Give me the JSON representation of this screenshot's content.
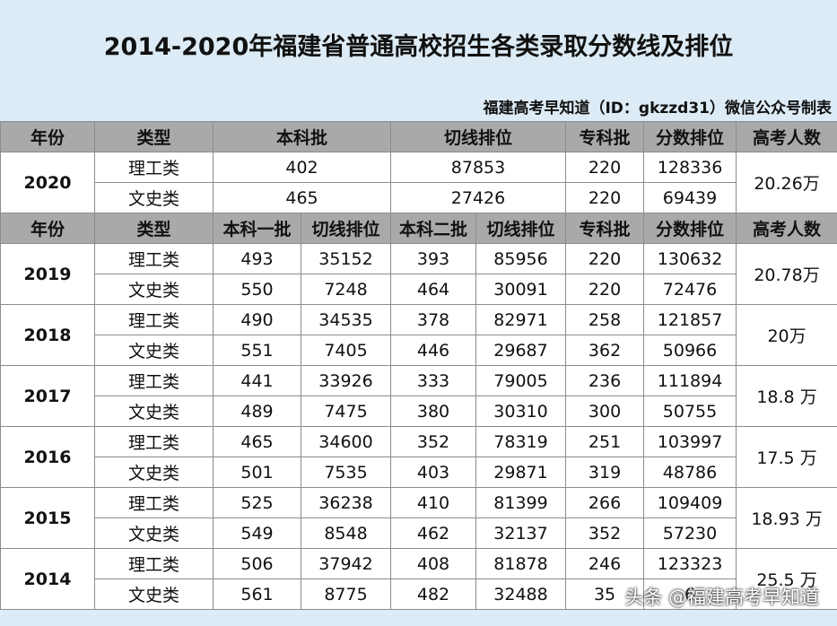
{
  "header": {
    "title": "2014-2020年福建省普通高校招生各类录取分数线及排位",
    "source": "福建高考早知道（ID：gkzzd31）微信公众号制表"
  },
  "table": {
    "header1": [
      "年份",
      "类型",
      "本科批",
      "切线排位",
      "专科批",
      "分数排位",
      "高考人数"
    ],
    "group2020": {
      "year": "2020",
      "total": "20.26万",
      "rows": [
        [
          "理工类",
          "402",
          "87853",
          "220",
          "128336"
        ],
        [
          "文史类",
          "465",
          "27426",
          "220",
          "69439"
        ]
      ]
    },
    "header2": [
      "年份",
      "类型",
      "本科一批",
      "切线排位",
      "本科二批",
      "切线排位",
      "专科批",
      "分数排位",
      "高考人数"
    ],
    "groups": [
      {
        "year": "2019",
        "total": "20.78万",
        "rows": [
          [
            "理工类",
            "493",
            "35152",
            "393",
            "85956",
            "220",
            "130632"
          ],
          [
            "文史类",
            "550",
            "7248",
            "464",
            "30091",
            "220",
            "72476"
          ]
        ]
      },
      {
        "year": "2018",
        "total": "20万",
        "rows": [
          [
            "理工类",
            "490",
            "34535",
            "378",
            "82971",
            "258",
            "121857"
          ],
          [
            "文史类",
            "551",
            "7405",
            "446",
            "29687",
            "362",
            "50966"
          ]
        ]
      },
      {
        "year": "2017",
        "total": "18.8 万",
        "rows": [
          [
            "理工类",
            "441",
            "33926",
            "333",
            "79005",
            "236",
            "111894"
          ],
          [
            "文史类",
            "489",
            "7475",
            "380",
            "30310",
            "300",
            "50755"
          ]
        ]
      },
      {
        "year": "2016",
        "total": "17.5 万",
        "rows": [
          [
            "理工类",
            "465",
            "34600",
            "352",
            "78319",
            "251",
            "103997"
          ],
          [
            "文史类",
            "501",
            "7535",
            "403",
            "29871",
            "319",
            "48786"
          ]
        ]
      },
      {
        "year": "2015",
        "total": "18.93 万",
        "rows": [
          [
            "理工类",
            "525",
            "36238",
            "410",
            "81399",
            "266",
            "109409"
          ],
          [
            "文史类",
            "549",
            "8548",
            "462",
            "32137",
            "352",
            "57230"
          ]
        ]
      },
      {
        "year": "2014",
        "total": "25.5 万",
        "rows": [
          [
            "理工类",
            "506",
            "37942",
            "408",
            "81878",
            "246",
            "123323"
          ],
          [
            "文史类",
            "561",
            "8775",
            "482",
            "32488",
            "35",
            "6"
          ]
        ]
      }
    ]
  },
  "watermark": "头条 @福建高考早知道"
}
